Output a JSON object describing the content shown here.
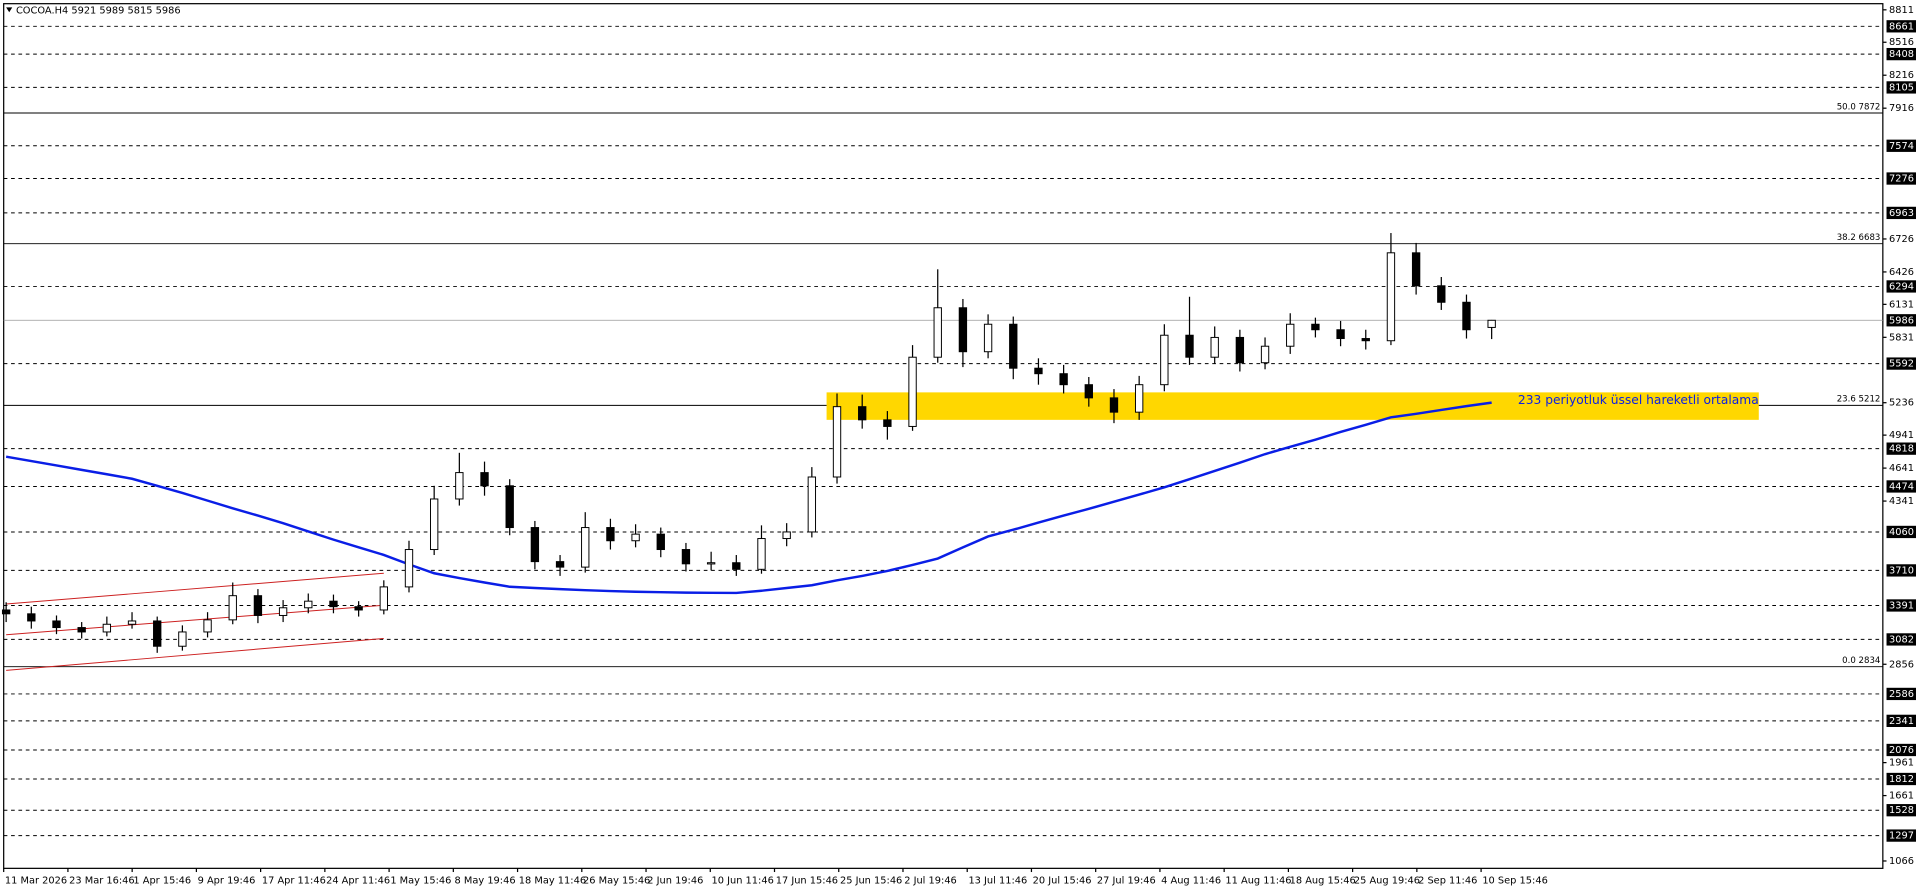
{
  "chart_data": {
    "type": "candlestick",
    "title": "COCOA.H4  5921 5989 5815 5986",
    "ylim": [
      1066,
      8811
    ],
    "yticks": [
      8811,
      8516,
      8216,
      7916,
      6726,
      6426,
      6131,
      5831,
      5236,
      4941,
      4641,
      4341,
      2856,
      1961,
      1661,
      1066
    ],
    "levels": [
      8661,
      8408,
      8105,
      7574,
      7276,
      6963,
      6294,
      5592,
      4818,
      4474,
      4060,
      3710,
      3391,
      3082,
      2586,
      2341,
      2076,
      1812,
      1528,
      1297
    ],
    "current_price": 5986,
    "fib": [
      {
        "value": 7872,
        "label": "50.0 7872"
      },
      {
        "value": 6683,
        "label": "38.2 6683"
      },
      {
        "value": 5212,
        "label": "23.6 5212"
      },
      {
        "value": 2834,
        "label": "0.0 2834"
      }
    ],
    "x_labels": [
      "11 Mar 2026",
      "23 Mar 16:46",
      "1 Apr 15:46",
      "9 Apr 19:46",
      "17 Apr 11:46",
      "24 Apr 11:46",
      "1 May 15:46",
      "8 May 19:46",
      "18 May 11:46",
      "26 May 15:46",
      "2 Jun 19:46",
      "10 Jun 11:46",
      "17 Jun 15:46",
      "25 Jun 15:46",
      "2 Jul 19:46",
      "13 Jul 11:46",
      "20 Jul 15:46",
      "27 Jul 19:46",
      "4 Aug 11:46",
      "11 Aug 11:46",
      "18 Aug 15:46",
      "25 Aug 19:46",
      "2 Sep 11:46",
      "10 Sep 15:46"
    ],
    "open": [
      3350,
      3315,
      3250,
      3190,
      3150,
      3220,
      3250,
      3020,
      3150,
      3260,
      3480,
      3300,
      3370,
      3430,
      3380,
      3350,
      3560,
      3900,
      4360,
      4600,
      4480,
      4100,
      3790,
      3740,
      4100,
      3980,
      4040,
      3900,
      3770,
      3780,
      3720,
      4000,
      4060,
      4560,
      5200,
      5080,
      5020,
      5650,
      6100,
      5700,
      5950,
      5550,
      5500,
      5400,
      5280,
      5150,
      5400,
      5850,
      5650,
      5830,
      5600,
      5750,
      5950,
      5900,
      5820,
      5800,
      6600,
      6300,
      6150,
      5921
    ],
    "high": [
      3420,
      3380,
      3300,
      3240,
      3290,
      3330,
      3290,
      3210,
      3330,
      3600,
      3540,
      3440,
      3500,
      3490,
      3430,
      3620,
      3980,
      4480,
      4780,
      4700,
      4540,
      4160,
      3850,
      4240,
      4180,
      4130,
      4100,
      3960,
      3880,
      3850,
      4120,
      4140,
      4650,
      5320,
      5310,
      5160,
      5760,
      6450,
      6180,
      6040,
      6020,
      5640,
      5580,
      5470,
      5360,
      5480,
      5950,
      6200,
      5930,
      5900,
      5830,
      6050,
      6010,
      5980,
      5900,
      6780,
      6690,
      6380,
      6220,
      5989
    ],
    "low": [
      3240,
      3180,
      3130,
      3090,
      3110,
      3180,
      2960,
      2980,
      3100,
      3220,
      3230,
      3240,
      3320,
      3320,
      3290,
      3310,
      3510,
      3850,
      4300,
      4390,
      4030,
      3720,
      3660,
      3690,
      3900,
      3920,
      3830,
      3700,
      3710,
      3660,
      3680,
      3930,
      4010,
      4500,
      5000,
      4900,
      4980,
      5600,
      5560,
      5640,
      5450,
      5400,
      5320,
      5200,
      5050,
      5080,
      5340,
      5580,
      5590,
      5520,
      5540,
      5680,
      5830,
      5750,
      5720,
      5760,
      6220,
      6080,
      5820,
      5815
    ],
    "close": [
      3315,
      3250,
      3190,
      3150,
      3220,
      3250,
      3020,
      3150,
      3260,
      3480,
      3300,
      3370,
      3430,
      3380,
      3350,
      3560,
      3900,
      4360,
      4600,
      4480,
      4100,
      3790,
      3740,
      4100,
      3980,
      4040,
      3900,
      3770,
      3780,
      3720,
      4000,
      4060,
      4560,
      5200,
      5080,
      5020,
      5650,
      6100,
      5700,
      5950,
      5550,
      5500,
      5400,
      5280,
      5150,
      5400,
      5850,
      5650,
      5830,
      5600,
      5750,
      5950,
      5900,
      5820,
      5800,
      6600,
      6300,
      6150,
      5900,
      5986
    ],
    "ema": {
      "color": "#0a1ee6",
      "label": "233 periyotluk üssel hareketli ortalama",
      "values": [
        4745,
        4705,
        4665,
        4625,
        4585,
        4544,
        4480,
        4415,
        4345,
        4275,
        4209,
        4140,
        4065,
        3990,
        3920,
        3851,
        3765,
        3684,
        3640,
        3600,
        3561,
        3550,
        3540,
        3530,
        3522,
        3516,
        3512,
        3508,
        3506,
        3505,
        3525,
        3550,
        3575,
        3620,
        3660,
        3705,
        3760,
        3818,
        3920,
        4019,
        4080,
        4145,
        4209,
        4270,
        4335,
        4400,
        4466,
        4540,
        4615,
        4690,
        4768,
        4835,
        4900,
        4970,
        5035,
        5103,
        5135,
        5170,
        5205,
        5237
      ]
    },
    "channel": {
      "color": "#cc2020",
      "lines": [
        [
          3404,
          3684
        ],
        [
          3125,
          3393
        ],
        [
          2800,
          3091
        ]
      ]
    },
    "zone": {
      "color": "#ffd700",
      "top": 5330,
      "bottom": 5080
    }
  }
}
